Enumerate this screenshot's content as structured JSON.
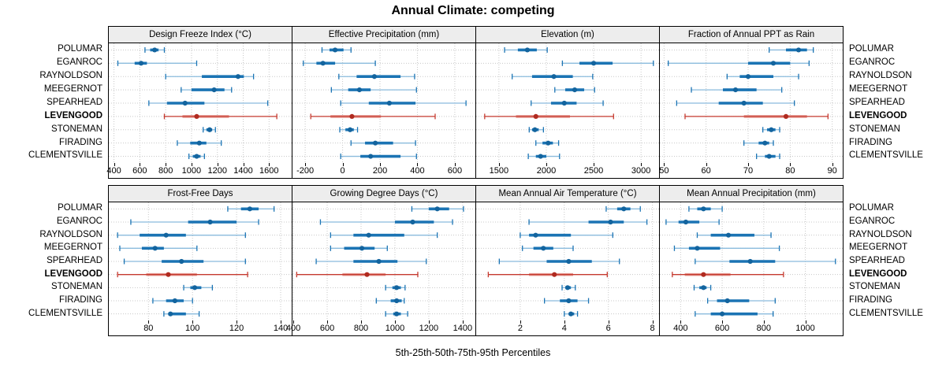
{
  "title": "Annual Climate: competing",
  "xlabel": "5th-25th-50th-75th-95th Percentiles",
  "sites": [
    "POLUMAR",
    "EGANROC",
    "RAYNOLDSON",
    "MEEGERNOT",
    "SPEARHEAD",
    "LEVENGOOD",
    "STONEMAN",
    "FIRADING",
    "CLEMENTSVILLE"
  ],
  "highlight_site": "LEVENGOOD",
  "colors": {
    "blue_main": "#1b74b4",
    "blue_light": "#8abbdd",
    "blue_dot": "#13649e",
    "red_main": "#c53a2f",
    "red_light": "#e69c94",
    "red_dot": "#b02a1f",
    "header_bg": "#ededed",
    "grid": "#c8c8c8",
    "border": "#000000"
  },
  "chart_data": {
    "type": "dotplot-interval",
    "note": "Each row shows 5th-25th-50th-75th-95th percentiles: thin line = 5th-95th with end caps, thick band = 25th-75th, dot = median",
    "percentiles": [
      "5th",
      "25th",
      "50th",
      "75th",
      "95th"
    ],
    "layout": {
      "rows": 2,
      "cols": 4,
      "grid": "dotted",
      "site_labels": "both-sides"
    },
    "panels": [
      {
        "id": "design-freeze-index",
        "row": 0,
        "title": "Design Freeze Index (°C)",
        "xlim": [
          360,
          1775
        ],
        "ticks": [
          400,
          600,
          800,
          1000,
          1200,
          1400,
          1600
        ],
        "values": [
          [
            640,
            680,
            715,
            745,
            790
          ],
          [
            430,
            560,
            610,
            655,
            1040
          ],
          [
            800,
            1080,
            1360,
            1405,
            1480
          ],
          [
            920,
            1000,
            1175,
            1255,
            1310
          ],
          [
            670,
            810,
            950,
            1100,
            1590
          ],
          [
            790,
            930,
            1040,
            1290,
            1660
          ],
          [
            1090,
            1115,
            1140,
            1160,
            1185
          ],
          [
            890,
            990,
            1060,
            1115,
            1230
          ],
          [
            980,
            1010,
            1040,
            1070,
            1100
          ]
        ]
      },
      {
        "id": "effective-precipitation",
        "row": 0,
        "title": "Effective Precipitation (mm)",
        "xlim": [
          -268,
          710
        ],
        "ticks": [
          -200,
          0,
          200,
          400,
          600
        ],
        "values": [
          [
            -110,
            -70,
            -40,
            5,
            45
          ],
          [
            -210,
            -140,
            -105,
            -40,
            175
          ],
          [
            -20,
            75,
            170,
            310,
            385
          ],
          [
            -60,
            30,
            90,
            150,
            395
          ],
          [
            -10,
            140,
            250,
            390,
            660
          ],
          [
            -170,
            -65,
            50,
            205,
            495
          ],
          [
            -15,
            15,
            40,
            60,
            80
          ],
          [
            45,
            120,
            175,
            270,
            390
          ],
          [
            -10,
            95,
            150,
            310,
            395
          ]
        ]
      },
      {
        "id": "elevation",
        "row": 0,
        "title": "Elevation (m)",
        "xlim": [
          1260,
          3190
        ],
        "ticks": [
          1500,
          2000,
          2500,
          3000
        ],
        "values": [
          [
            1560,
            1700,
            1800,
            1900,
            2010
          ],
          [
            2170,
            2350,
            2500,
            2700,
            3130
          ],
          [
            1640,
            1850,
            2080,
            2280,
            2490
          ],
          [
            2090,
            2200,
            2300,
            2400,
            2510
          ],
          [
            1840,
            2050,
            2190,
            2320,
            2600
          ],
          [
            1350,
            1680,
            1890,
            2250,
            2710
          ],
          [
            1820,
            1850,
            1880,
            1920,
            1970
          ],
          [
            1890,
            1960,
            2020,
            2070,
            2130
          ],
          [
            1810,
            1890,
            1940,
            2000,
            2140
          ]
        ]
      },
      {
        "id": "fraction-ppt-as-rain",
        "row": 0,
        "title": "Fraction of Annual PPT as Rain",
        "xlim": [
          49,
          92.5
        ],
        "ticks": [
          50,
          60,
          70,
          80,
          90
        ],
        "values": [
          [
            75,
            79,
            82,
            84,
            85.5
          ],
          [
            51,
            70,
            76,
            80,
            84.5
          ],
          [
            65,
            68,
            70,
            76,
            82
          ],
          [
            56.5,
            64,
            67,
            72,
            78
          ],
          [
            53,
            63,
            69,
            73.5,
            81
          ],
          [
            55,
            69,
            79,
            84,
            89
          ],
          [
            73.5,
            74.5,
            75.5,
            76.5,
            77.5
          ],
          [
            69,
            72.5,
            74,
            75,
            76
          ],
          [
            72,
            74,
            75,
            76.5,
            77.5
          ]
        ]
      },
      {
        "id": "frost-free-days",
        "row": 1,
        "title": "Frost-Free Days",
        "xlim": [
          62,
          145
        ],
        "ticks": [
          80,
          100,
          120,
          140
        ],
        "values": [
          [
            116,
            122,
            126,
            130,
            137
          ],
          [
            72,
            98,
            108,
            120,
            130
          ],
          [
            66,
            76,
            88,
            97,
            124
          ],
          [
            67,
            77,
            83,
            87,
            102
          ],
          [
            69,
            86,
            95,
            105,
            124
          ],
          [
            66,
            79,
            89,
            102,
            125
          ],
          [
            96,
            99,
            101,
            104,
            109
          ],
          [
            82,
            88,
            92,
            96,
            100
          ],
          [
            87,
            89,
            90,
            97,
            103
          ]
        ]
      },
      {
        "id": "growing-degree-days",
        "row": 1,
        "title": "Growing Degree Days (°C)",
        "xlim": [
          395,
          1475
        ],
        "ticks": [
          400,
          600,
          800,
          1000,
          1200,
          1400
        ],
        "values": [
          [
            1100,
            1200,
            1250,
            1320,
            1405
          ],
          [
            560,
            1000,
            1105,
            1230,
            1340
          ],
          [
            620,
            755,
            845,
            1055,
            1250
          ],
          [
            620,
            700,
            805,
            880,
            955
          ],
          [
            535,
            755,
            905,
            1015,
            1185
          ],
          [
            420,
            690,
            835,
            945,
            1135
          ],
          [
            945,
            985,
            1010,
            1035,
            1060
          ],
          [
            890,
            975,
            1010,
            1040,
            1055
          ],
          [
            945,
            990,
            1010,
            1035,
            1075
          ]
        ]
      },
      {
        "id": "mean-annual-air-temperature",
        "row": 1,
        "title": "Mean Annual Air Temperature (°C)",
        "xlim": [
          0,
          8.3
        ],
        "ticks": [
          2,
          4,
          6,
          8
        ],
        "values": [
          [
            5.9,
            6.4,
            6.7,
            7.0,
            7.45
          ],
          [
            2.4,
            5.1,
            6.1,
            6.7,
            7.75
          ],
          [
            2.0,
            2.4,
            2.7,
            4.3,
            6.2
          ],
          [
            2.1,
            2.6,
            3.05,
            3.5,
            4.4
          ],
          [
            1.05,
            3.2,
            4.2,
            5.25,
            6.5
          ],
          [
            0.55,
            2.4,
            3.55,
            4.4,
            5.95
          ],
          [
            3.9,
            4.05,
            4.15,
            4.3,
            4.5
          ],
          [
            3.1,
            3.8,
            4.2,
            4.6,
            5.1
          ],
          [
            4.0,
            4.2,
            4.3,
            4.45,
            4.6
          ]
        ]
      },
      {
        "id": "mean-annual-precipitation",
        "row": 1,
        "title": "Mean Annual Precipitation (mm)",
        "xlim": [
          300,
          1180
        ],
        "ticks": [
          400,
          600,
          800,
          1000
        ],
        "values": [
          [
            440,
            480,
            510,
            545,
            600
          ],
          [
            330,
            390,
            425,
            490,
            585
          ],
          [
            480,
            545,
            630,
            755,
            835
          ],
          [
            370,
            440,
            480,
            590,
            875
          ],
          [
            470,
            635,
            735,
            855,
            1145
          ],
          [
            360,
            420,
            510,
            640,
            895
          ],
          [
            465,
            490,
            510,
            525,
            545
          ],
          [
            530,
            575,
            625,
            730,
            855
          ],
          [
            470,
            545,
            600,
            770,
            845
          ]
        ]
      }
    ]
  }
}
